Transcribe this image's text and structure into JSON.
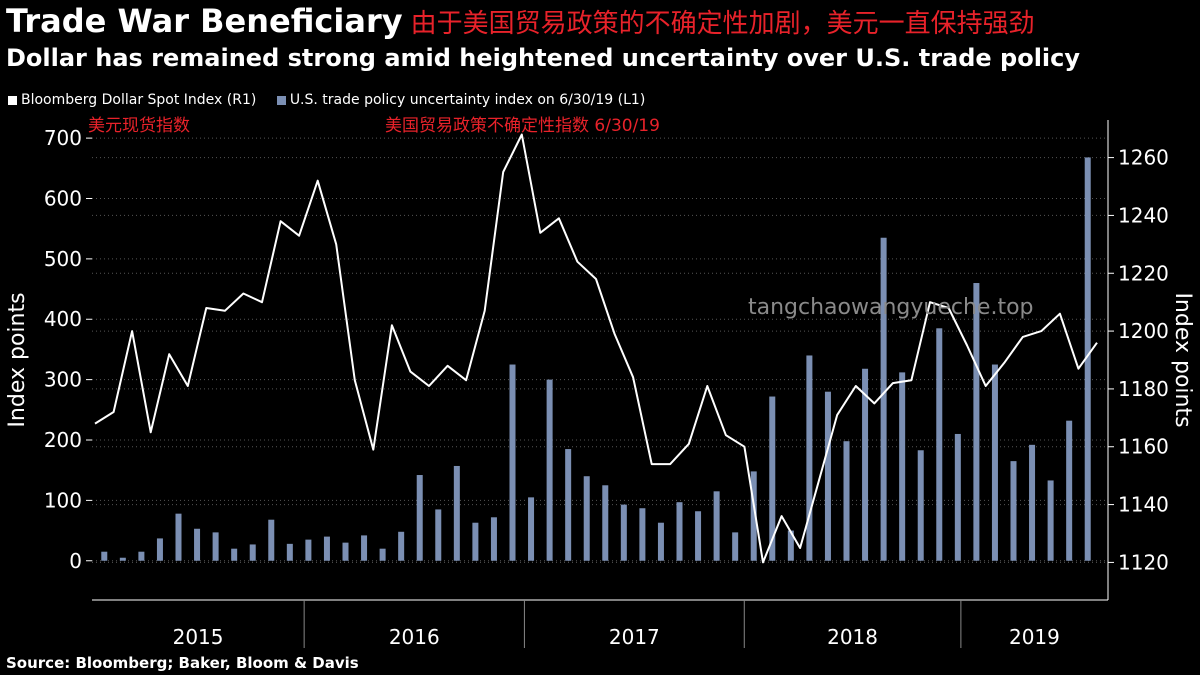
{
  "header": {
    "title": "Trade War Beneficiary",
    "title_cn": "由于美国贸易政策的不确定性加剧，美元一直保持强劲",
    "subtitle": "Dollar has remained strong amid heightened uncertainty over U.S. trade policy"
  },
  "legend": {
    "line_label": "Bloomberg Dollar Spot Index (R1)",
    "bar_label": "U.S. trade policy uncertainty index on 6/30/19 (L1)"
  },
  "annotations": {
    "line_cn": "美元现货指数",
    "bar_cn": "美国贸易政策不确定性指数 6/30/19"
  },
  "watermark": "tangchaowangyueche.top",
  "source": "Source: Bloomberg; Baker, Bloom & Davis",
  "colors": {
    "background": "#000000",
    "line": "#ffffff",
    "bars": "#7b8fb3",
    "chinese_text": "#e8222a"
  },
  "chart_data": {
    "type": "bar+line",
    "x_labels": [
      "2015",
      "2016",
      "2017",
      "2018",
      "2019"
    ],
    "ylabel_left": "Index points",
    "ylabel_right": "Index points",
    "ylim_left": [
      -65,
      730
    ],
    "yticks_left": [
      0,
      100,
      200,
      300,
      400,
      500,
      600,
      700
    ],
    "ylim_right": [
      1107,
      1273
    ],
    "yticks_right": [
      1120,
      1140,
      1160,
      1180,
      1200,
      1220,
      1240,
      1260
    ],
    "grid": "dotted horizontal",
    "series": [
      {
        "name": "U.S. trade policy uncertainty index on 6/30/19",
        "axis": "left",
        "kind": "bar",
        "values": [
          15,
          5,
          15,
          37,
          78,
          53,
          47,
          20,
          27,
          68,
          28,
          35,
          40,
          30,
          42,
          20,
          48,
          142,
          85,
          157,
          63,
          72,
          325,
          105,
          300,
          185,
          140,
          125,
          93,
          87,
          63,
          97,
          82,
          115,
          47,
          148,
          272,
          50,
          340,
          280,
          198,
          318,
          535,
          312,
          183,
          385,
          210,
          460,
          325,
          165,
          192,
          133,
          232,
          668
        ]
      },
      {
        "name": "Bloomberg Dollar Spot Index",
        "axis": "right",
        "kind": "line",
        "values": [
          1168,
          1172,
          1200,
          1165,
          1192,
          1181,
          1208,
          1207,
          1213,
          1210,
          1238,
          1233,
          1252,
          1230,
          1183,
          1159,
          1202,
          1186,
          1181,
          1188,
          1183,
          1207,
          1255,
          1268,
          1234,
          1239,
          1224,
          1218,
          1199,
          1184,
          1154,
          1154,
          1161,
          1181,
          1164,
          1160,
          1120,
          1136,
          1125,
          1148,
          1171,
          1181,
          1175,
          1182,
          1183,
          1210,
          1208,
          1195,
          1181,
          1189,
          1198,
          1200,
          1206,
          1187,
          1196
        ]
      }
    ]
  }
}
